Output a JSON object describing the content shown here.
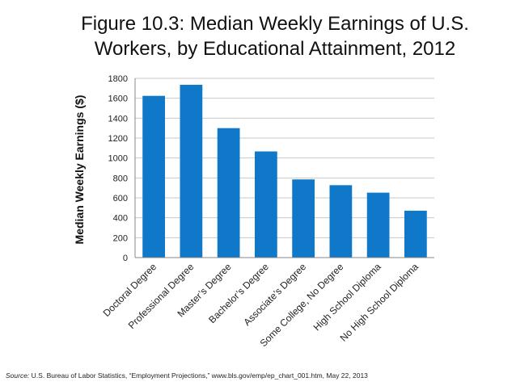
{
  "title_line1": "Figure 10.3: Median Weekly Earnings of U.S.",
  "title_line2": "Workers, by Educational Attainment, 2012",
  "source_label": "Source:",
  "source_text": "U.S. Bureau of Labor Statistics, “Employment Projections,” www.bls.gov/emp/ep_chart_001.htm, May 22, 2013",
  "chart_data": {
    "type": "bar",
    "title": "Figure 10.3: Median Weekly Earnings of U.S. Workers, by Educational Attainment, 2012",
    "ylabel": "Median Weekly Earnings ($)",
    "xlabel": "",
    "categories": [
      "Doctoral Degree",
      "Professional Degree",
      "Master’s Degree",
      "Bachelor’s Degree",
      "Associate’s Degree",
      "Some College, No Degree",
      "High School Diploma",
      "No High School Diploma"
    ],
    "values": [
      1624,
      1735,
      1300,
      1066,
      785,
      727,
      652,
      471
    ],
    "ylim": [
      0,
      1800
    ],
    "yticks": [
      0,
      200,
      400,
      600,
      800,
      1000,
      1200,
      1400,
      1600,
      1800
    ],
    "grid": true,
    "legend": "none",
    "bar_color": "#0f78c8"
  }
}
